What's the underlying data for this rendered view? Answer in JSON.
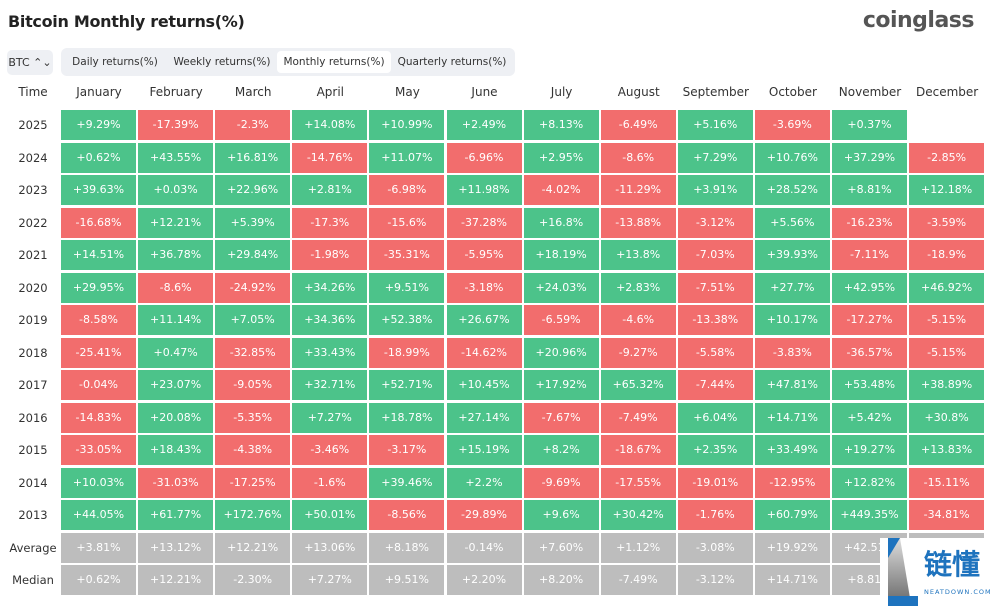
{
  "title": "Bitcoin Monthly returns(%)",
  "logo": "coinglass",
  "asset_select": "BTC ⌃⌄",
  "tabs": [
    {
      "label": "Daily returns(%)"
    },
    {
      "label": "Weekly returns(%)"
    },
    {
      "label": "Monthly returns(%)",
      "active": true
    },
    {
      "label": "Quarterly returns(%)"
    }
  ],
  "watermark": {
    "text": "链懂",
    "sub": "NEATDOWN.COM"
  },
  "colors": {
    "positive": "#4CC38A",
    "negative": "#F26D6D",
    "summary": "#BDBDBD"
  },
  "chart_data": {
    "type": "heatmap",
    "row_header": "Time",
    "columns": [
      "January",
      "February",
      "March",
      "April",
      "May",
      "June",
      "July",
      "August",
      "September",
      "October",
      "November",
      "December"
    ],
    "rows": [
      {
        "label": "2025",
        "values": [
          "+9.29%",
          "-17.39%",
          "-2.3%",
          "+14.08%",
          "+10.99%",
          "+2.49%",
          "+8.13%",
          "-6.49%",
          "+5.16%",
          "-3.69%",
          "+0.37%",
          ""
        ]
      },
      {
        "label": "2024",
        "values": [
          "+0.62%",
          "+43.55%",
          "+16.81%",
          "-14.76%",
          "+11.07%",
          "-6.96%",
          "+2.95%",
          "-8.6%",
          "+7.29%",
          "+10.76%",
          "+37.29%",
          "-2.85%"
        ]
      },
      {
        "label": "2023",
        "values": [
          "+39.63%",
          "+0.03%",
          "+22.96%",
          "+2.81%",
          "-6.98%",
          "+11.98%",
          "-4.02%",
          "-11.29%",
          "+3.91%",
          "+28.52%",
          "+8.81%",
          "+12.18%"
        ]
      },
      {
        "label": "2022",
        "values": [
          "-16.68%",
          "+12.21%",
          "+5.39%",
          "-17.3%",
          "-15.6%",
          "-37.28%",
          "+16.8%",
          "-13.88%",
          "-3.12%",
          "+5.56%",
          "-16.23%",
          "-3.59%"
        ]
      },
      {
        "label": "2021",
        "values": [
          "+14.51%",
          "+36.78%",
          "+29.84%",
          "-1.98%",
          "-35.31%",
          "-5.95%",
          "+18.19%",
          "+13.8%",
          "-7.03%",
          "+39.93%",
          "-7.11%",
          "-18.9%"
        ]
      },
      {
        "label": "2020",
        "values": [
          "+29.95%",
          "-8.6%",
          "-24.92%",
          "+34.26%",
          "+9.51%",
          "-3.18%",
          "+24.03%",
          "+2.83%",
          "-7.51%",
          "+27.7%",
          "+42.95%",
          "+46.92%"
        ]
      },
      {
        "label": "2019",
        "values": [
          "-8.58%",
          "+11.14%",
          "+7.05%",
          "+34.36%",
          "+52.38%",
          "+26.67%",
          "-6.59%",
          "-4.6%",
          "-13.38%",
          "+10.17%",
          "-17.27%",
          "-5.15%"
        ]
      },
      {
        "label": "2018",
        "values": [
          "-25.41%",
          "+0.47%",
          "-32.85%",
          "+33.43%",
          "-18.99%",
          "-14.62%",
          "+20.96%",
          "-9.27%",
          "-5.58%",
          "-3.83%",
          "-36.57%",
          "-5.15%"
        ]
      },
      {
        "label": "2017",
        "values": [
          "-0.04%",
          "+23.07%",
          "-9.05%",
          "+32.71%",
          "+52.71%",
          "+10.45%",
          "+17.92%",
          "+65.32%",
          "-7.44%",
          "+47.81%",
          "+53.48%",
          "+38.89%"
        ]
      },
      {
        "label": "2016",
        "values": [
          "-14.83%",
          "+20.08%",
          "-5.35%",
          "+7.27%",
          "+18.78%",
          "+27.14%",
          "-7.67%",
          "-7.49%",
          "+6.04%",
          "+14.71%",
          "+5.42%",
          "+30.8%"
        ]
      },
      {
        "label": "2015",
        "values": [
          "-33.05%",
          "+18.43%",
          "-4.38%",
          "-3.46%",
          "-3.17%",
          "+15.19%",
          "+8.2%",
          "-18.67%",
          "+2.35%",
          "+33.49%",
          "+19.27%",
          "+13.83%"
        ]
      },
      {
        "label": "2014",
        "values": [
          "+10.03%",
          "-31.03%",
          "-17.25%",
          "-1.6%",
          "+39.46%",
          "+2.2%",
          "-9.69%",
          "-17.55%",
          "-19.01%",
          "-12.95%",
          "+12.82%",
          "-15.11%"
        ]
      },
      {
        "label": "2013",
        "values": [
          "+44.05%",
          "+61.77%",
          "+172.76%",
          "+50.01%",
          "-8.56%",
          "-29.89%",
          "+9.6%",
          "+30.42%",
          "-1.76%",
          "+60.79%",
          "+449.35%",
          "-34.81%"
        ]
      },
      {
        "label": "Average",
        "summary": true,
        "values": [
          "+3.81%",
          "+13.12%",
          "+12.21%",
          "+13.06%",
          "+8.18%",
          "-0.14%",
          "+7.60%",
          "+1.12%",
          "-3.08%",
          "+19.92%",
          "+42.51%",
          ""
        ]
      },
      {
        "label": "Median",
        "summary": true,
        "values": [
          "+0.62%",
          "+12.21%",
          "-2.30%",
          "+7.27%",
          "+9.51%",
          "+2.20%",
          "+8.20%",
          "-7.49%",
          "-3.12%",
          "+14.71%",
          "+8.81%",
          ""
        ]
      }
    ]
  }
}
